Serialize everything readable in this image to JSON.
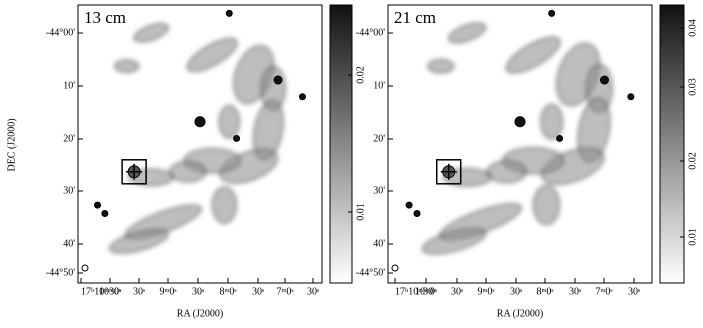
{
  "panels": [
    {
      "label": "13 cm",
      "x_axis_title": "RA (J2000)",
      "y_axis_title": "DEC (J2000)",
      "x_ticks": [
        "17ʰ10ᵐ30ˢ",
        "10ᵐ0ˢ",
        "30ˢ",
        "9ᵐ0ˢ",
        "30ˢ",
        "8ᵐ0ˢ",
        "30ˢ",
        "7ᵐ0ˢ",
        "30ˢ"
      ],
      "y_ticks": [
        "-44°00'",
        "10'",
        "20'",
        "30'",
        "40'",
        "-44°50'"
      ],
      "colorbar_ticks": [
        "0.02",
        "0.01"
      ]
    },
    {
      "label": "21 cm",
      "x_axis_title": "RA (J2000)",
      "x_ticks": [
        "17ʰ10ᵐ30ˢ",
        "10ᵐ0ˢ",
        "30ˢ",
        "9ᵐ0ˢ",
        "30ˢ",
        "8ᵐ0ˢ",
        "30ˢ",
        "7ᵐ0ˢ",
        "30ˢ"
      ],
      "y_ticks": [
        "-44°00'",
        "10'",
        "20'",
        "30'",
        "40'",
        "-44°50'"
      ],
      "colorbar_ticks": [
        "0.04",
        "0.03",
        "0.02",
        "0.01"
      ]
    }
  ]
}
